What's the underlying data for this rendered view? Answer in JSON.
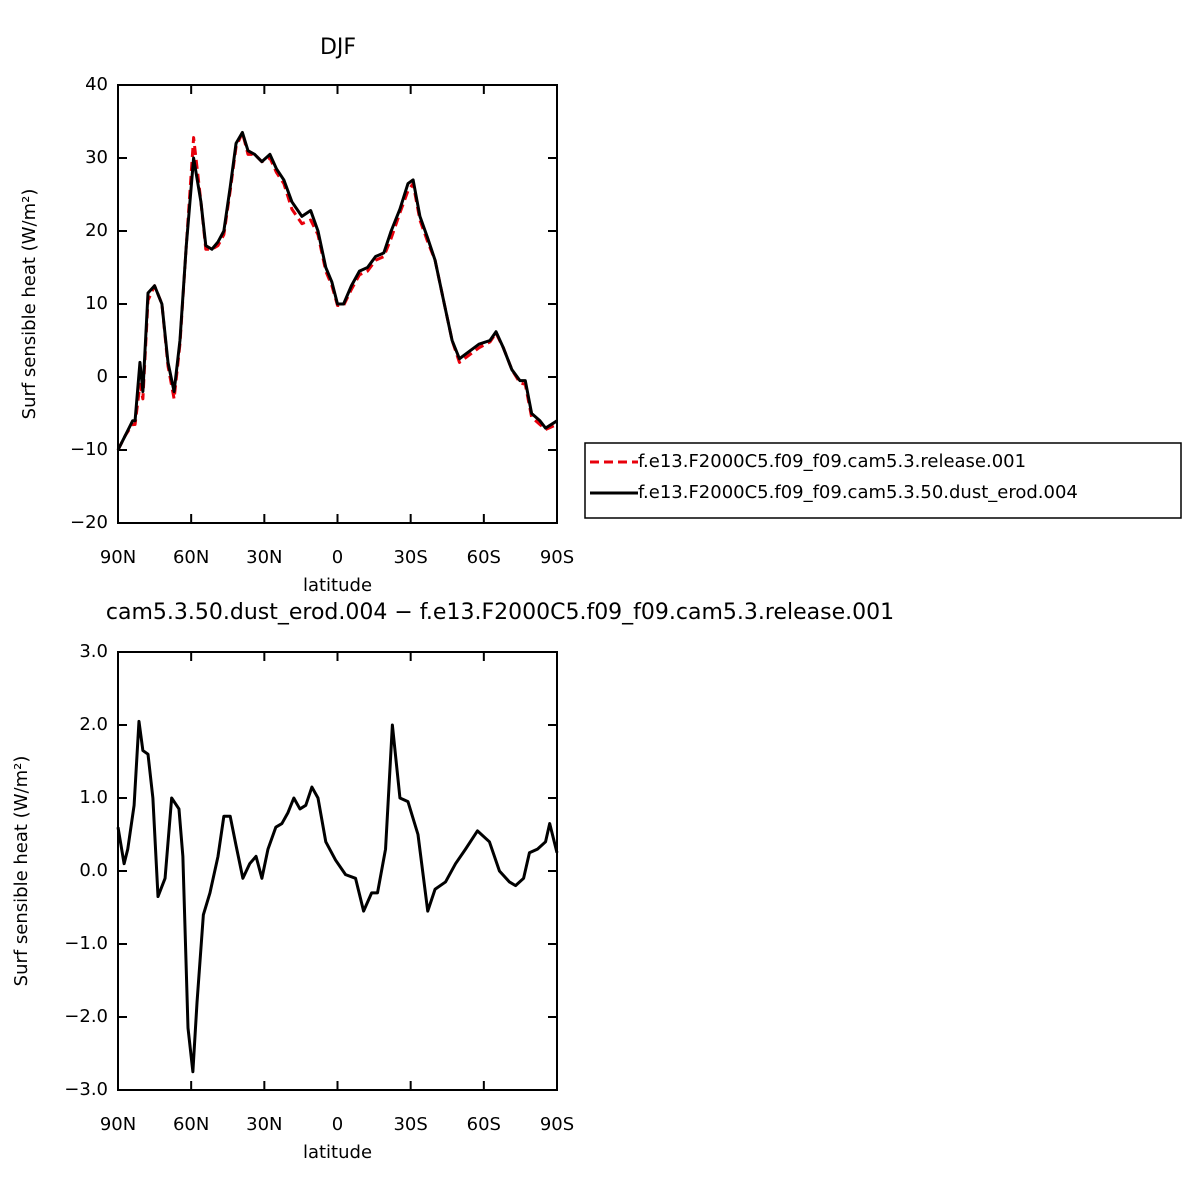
{
  "chart_data": [
    {
      "type": "line",
      "title": "DJF",
      "xlabel": "latitude",
      "ylabel": "Surf sensible heat (W/m²)",
      "xlim": [
        90,
        -90
      ],
      "ylim": [
        -20,
        40
      ],
      "xticks": [
        {
          "value": 90,
          "label": "90N"
        },
        {
          "value": 60,
          "label": "60N"
        },
        {
          "value": 30,
          "label": "30N"
        },
        0,
        {
          "value": -30,
          "label": "30S"
        },
        {
          "value": -60,
          "label": "60S"
        },
        {
          "value": -90,
          "label": "90S"
        }
      ],
      "yticks": [
        {
          "value": -20,
          "label": "−20"
        },
        {
          "value": -10,
          "label": "−10"
        },
        0,
        10,
        20,
        30,
        40
      ],
      "legend": "outside-right",
      "x": [
        90,
        87,
        84,
        83,
        81,
        79.8,
        77.7,
        75,
        72,
        69.5,
        67,
        64.6,
        62,
        59,
        56,
        54,
        51.5,
        49,
        46.6,
        44,
        41.6,
        39,
        36.7,
        34,
        31,
        27.7,
        25,
        22,
        18.7,
        14.6,
        11,
        8,
        4.8,
        2.3,
        0,
        -2.5,
        -5.7,
        -9,
        -12.3,
        -15.6,
        -19,
        -22,
        -25.6,
        -28.9,
        -31,
        -33.8,
        -37,
        -40,
        -43.8,
        -47,
        -50,
        -54,
        -58,
        -62.5,
        -65,
        -68,
        -71.5,
        -74.8,
        -77,
        -79.6,
        -83,
        -85.3,
        -90
      ],
      "series": [
        {
          "name": "f.e13.F2000C5.f09_f09.cam5.3.release.001",
          "color": "#e8000b",
          "dash": "dashed",
          "values": [
            -10,
            -8,
            -6.5,
            -6.5,
            -1,
            -3,
            10.5,
            12.5,
            10,
            1.5,
            -3,
            4.5,
            18,
            32.8,
            24,
            17.5,
            17.5,
            18,
            19.5,
            25.5,
            31.5,
            33.5,
            30.5,
            30.5,
            29.5,
            30,
            28,
            26.5,
            23,
            21,
            21.5,
            19.5,
            14.5,
            12.5,
            9.8,
            9.8,
            12,
            14,
            14.5,
            16,
            16.5,
            19,
            22.5,
            25.5,
            26.5,
            21.5,
            18.5,
            16,
            10,
            5,
            2,
            3,
            4,
            4.8,
            6,
            4,
            1,
            -0.8,
            -1,
            -5.5,
            -6.5,
            -7.2,
            -6.5
          ]
        },
        {
          "name": "f.e13.F2000C5.f09_f09.cam5.3.50.dust_erod.004",
          "color": "#000000",
          "dash": "solid",
          "values": [
            -10,
            -8,
            -6,
            -6,
            2,
            -2,
            11.5,
            12.5,
            10,
            2,
            -2,
            5,
            18,
            30,
            24,
            18,
            17.5,
            18.5,
            20,
            26,
            32,
            33.5,
            31,
            30.5,
            29.5,
            30.5,
            28.5,
            27,
            24,
            22,
            22.8,
            20,
            15,
            13,
            10,
            10,
            12.5,
            14.5,
            15,
            16.5,
            17,
            20,
            23,
            26.5,
            27,
            22,
            19,
            16,
            10,
            5,
            2.5,
            3.5,
            4.5,
            5,
            6.2,
            4,
            1,
            -0.5,
            -0.5,
            -5,
            -6,
            -7,
            -6
          ]
        }
      ]
    },
    {
      "type": "line",
      "title": "cam5.3.50.dust_erod.004 − f.e13.F2000C5.f09_f09.cam5.3.release.001",
      "xlabel": "latitude",
      "ylabel": "Surf sensible heat (W/m²)",
      "xlim": [
        90,
        -90
      ],
      "ylim": [
        -3,
        3
      ],
      "xticks": [
        {
          "value": 90,
          "label": "90N"
        },
        {
          "value": 60,
          "label": "60N"
        },
        {
          "value": 30,
          "label": "30N"
        },
        0,
        {
          "value": -30,
          "label": "30S"
        },
        {
          "value": -60,
          "label": "60S"
        },
        {
          "value": -90,
          "label": "90S"
        }
      ],
      "yticks": [
        {
          "value": -3,
          "label": "−3.0"
        },
        {
          "value": -2,
          "label": "−2.0"
        },
        {
          "value": -1,
          "label": "−1.0"
        },
        {
          "value": 0,
          "label": "0.0"
        },
        {
          "value": 1,
          "label": "1.0"
        },
        {
          "value": 2,
          "label": "2.0"
        },
        {
          "value": 3,
          "label": "3.0"
        }
      ],
      "x": [
        90,
        87.5,
        86,
        83.4,
        81.4,
        79.8,
        77.7,
        75.7,
        73.6,
        70.7,
        68,
        65,
        63.4,
        61.3,
        59.3,
        57.6,
        55,
        52.3,
        49,
        46.6,
        44,
        41.6,
        38.8,
        36,
        33.4,
        31,
        28.5,
        25.3,
        22.8,
        20.3,
        17.9,
        15.4,
        13,
        10.5,
        8,
        4.8,
        0.8,
        -3.3,
        -7.4,
        -10.7,
        -14,
        -16.4,
        -19.7,
        -22.5,
        -25.6,
        -28.9,
        -33,
        -37,
        -40,
        -44.3,
        -48.4,
        -52.5,
        -57.4,
        -62.3,
        -66.4,
        -70.5,
        -73,
        -76.3,
        -78.7,
        -82,
        -85.3,
        -87,
        -90
      ],
      "series": [
        {
          "color": "#000000",
          "dash": "solid",
          "values": [
            0.6,
            0.1,
            0.3,
            0.9,
            2.05,
            1.65,
            1.6,
            1.0,
            -0.35,
            -0.1,
            1.0,
            0.85,
            0.2,
            -2.15,
            -2.75,
            -1.8,
            -0.6,
            -0.3,
            0.2,
            0.75,
            0.75,
            0.35,
            -0.1,
            0.1,
            0.2,
            -0.1,
            0.3,
            0.6,
            0.65,
            0.8,
            1.0,
            0.85,
            0.9,
            1.15,
            1.0,
            0.4,
            0.15,
            -0.05,
            -0.1,
            -0.55,
            -0.3,
            -0.3,
            0.3,
            2.0,
            1.0,
            0.95,
            0.5,
            -0.55,
            -0.25,
            -0.15,
            0.1,
            0.3,
            0.55,
            0.4,
            0,
            -0.15,
            -0.2,
            -0.1,
            0.25,
            0.3,
            0.4,
            0.65,
            0.25
          ]
        }
      ]
    }
  ]
}
